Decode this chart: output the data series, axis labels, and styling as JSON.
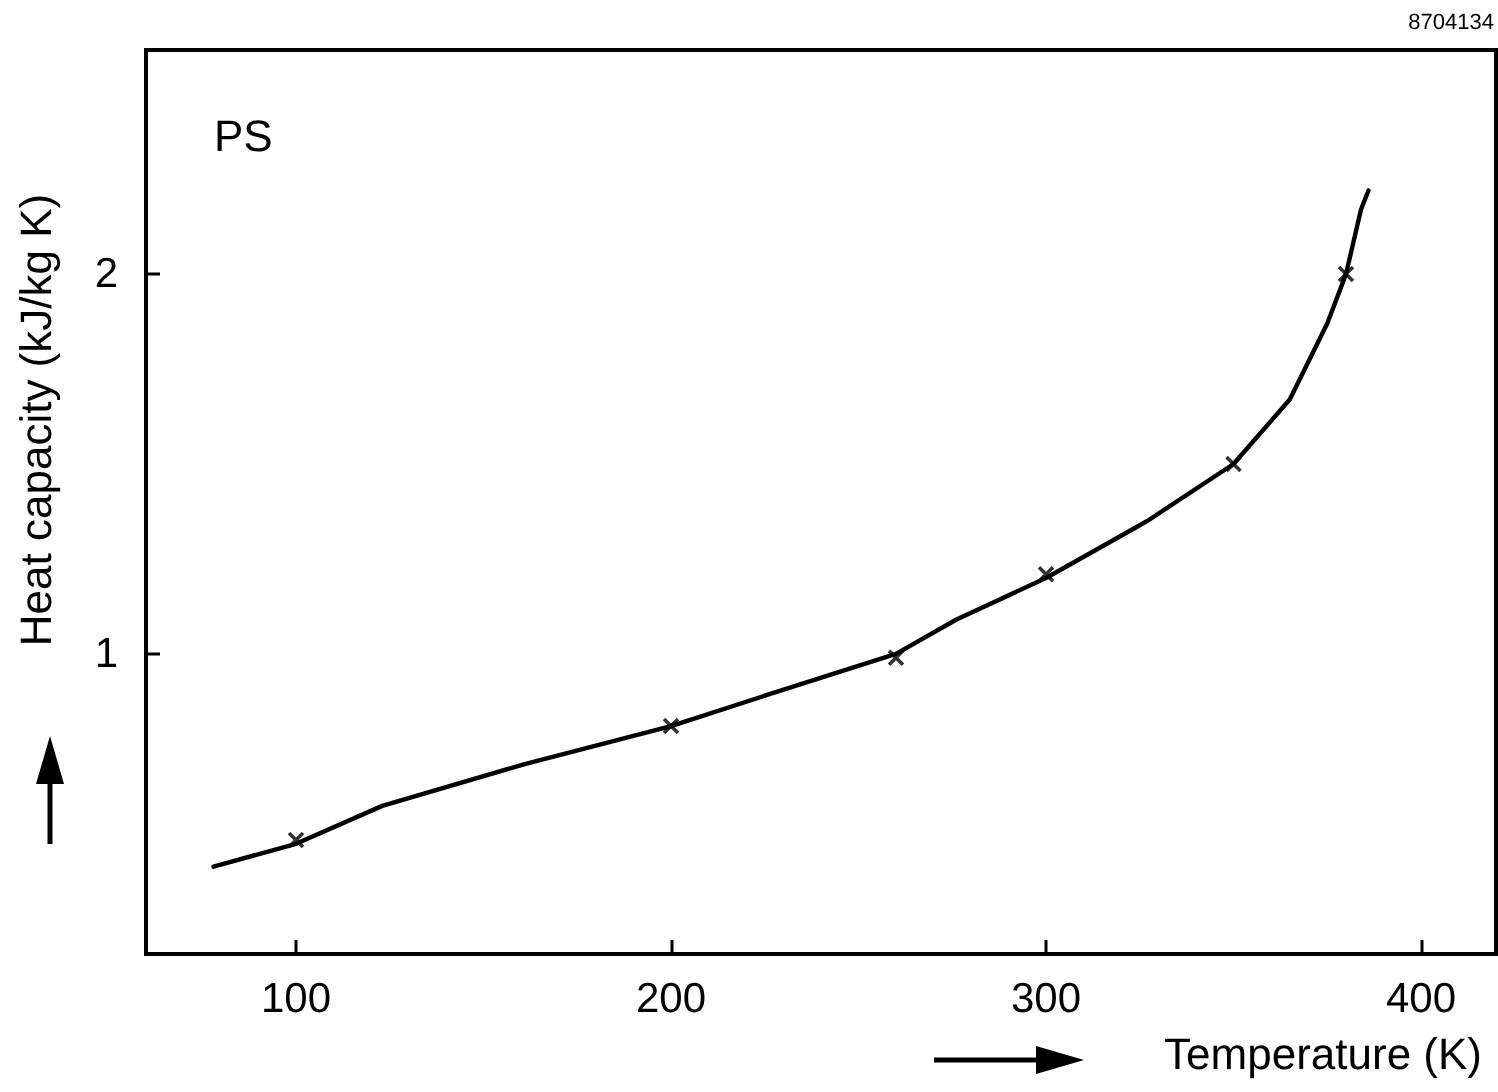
{
  "chart_data": {
    "type": "line",
    "xlabel": "Temperature (K)",
    "ylabel": "Heat capacity (kJ/kg K)",
    "annotations": [
      "PS",
      "8704134"
    ],
    "xlim": [
      60,
      420
    ],
    "ylim": [
      0.21,
      2.59
    ],
    "xticks": [
      100,
      200,
      300,
      400
    ],
    "yticks": [
      1,
      2
    ],
    "grid": false,
    "series": [
      {
        "color": "#000000",
        "marker": "none",
        "x": [
          78,
          100,
          123,
          161,
          200,
          225,
          260,
          276,
          300,
          327,
          350,
          365,
          375,
          380,
          384,
          386
        ],
        "values": [
          0.44,
          0.5,
          0.6,
          0.71,
          0.81,
          0.89,
          1.0,
          1.09,
          1.2,
          1.35,
          1.5,
          1.67,
          1.87,
          2.0,
          2.17,
          2.22
        ]
      },
      {
        "type": "scatter",
        "color": "#000000",
        "marker": "cross",
        "x": [
          100,
          200,
          260,
          300,
          350,
          380
        ],
        "values": [
          0.51,
          0.81,
          0.99,
          1.21,
          1.5,
          2.0
        ]
      }
    ]
  }
}
